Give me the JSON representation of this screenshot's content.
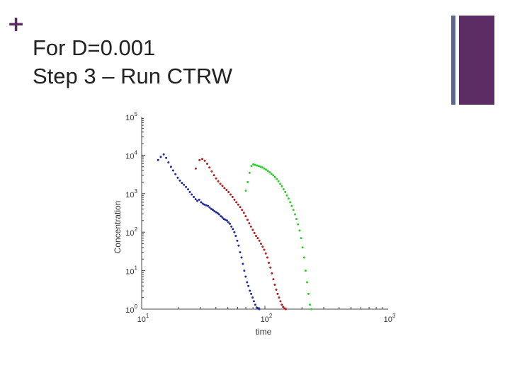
{
  "slide": {
    "plus_symbol": "+",
    "title_line1": "For D=0.001",
    "title_line2": "Step 3 – Run CTRW"
  },
  "colors": {
    "accent_thin": "#5b6591",
    "accent_thick": "#5c2d64"
  },
  "chart_data": {
    "type": "scatter",
    "xlabel": "time",
    "ylabel": "Concentration",
    "xscale": "log",
    "yscale": "log",
    "xlim": [
      10,
      1000
    ],
    "ylim": [
      1,
      100000
    ],
    "x_tick_labels": [
      {
        "value": 10,
        "base": "10",
        "exp": "1"
      },
      {
        "value": 100,
        "base": "10",
        "exp": "2"
      },
      {
        "value": 1000,
        "base": "10",
        "exp": "3"
      }
    ],
    "y_tick_labels": [
      {
        "value": 1,
        "base": "10",
        "exp": "0"
      },
      {
        "value": 10,
        "base": "10",
        "exp": "1"
      },
      {
        "value": 100,
        "base": "10",
        "exp": "2"
      },
      {
        "value": 1000,
        "base": "10",
        "exp": "3"
      },
      {
        "value": 10000,
        "base": "10",
        "exp": "4"
      },
      {
        "value": 100000,
        "base": "10",
        "exp": "5"
      }
    ],
    "series": [
      {
        "color": "#1f2a9c",
        "x": [
          13.6,
          14.3,
          15.1,
          15.8,
          16.5,
          17.3,
          18.0,
          18.8,
          19.6,
          20.4,
          21.2,
          22.0,
          22.9,
          23.8,
          24.6,
          25.5,
          26.5,
          27.4,
          28.3,
          29.3,
          30.3,
          31.3,
          32.3,
          33.4,
          34.5,
          35.6,
          36.7,
          37.8,
          39.0,
          40.2,
          41.4,
          42.6,
          43.9,
          45.2,
          46.5,
          47.8,
          49.2,
          50.6,
          52.0,
          53.5,
          55.0,
          56.5,
          58.0,
          59.6,
          61.2,
          62.9,
          64.6,
          66.3,
          68.0,
          69.8,
          71.6,
          73.5,
          75.4,
          77.4,
          79.4,
          81.4,
          83.5,
          85.6,
          87.8,
          90.0
        ],
        "y": [
          7500,
          9000,
          10500,
          8500,
          6500,
          5000,
          4000,
          3200,
          2600,
          2200,
          1900,
          1700,
          1500,
          1300,
          1100,
          950,
          820,
          720,
          650,
          700,
          600,
          550,
          520,
          500,
          480,
          440,
          400,
          380,
          350,
          330,
          310,
          290,
          260,
          240,
          220,
          210,
          200,
          180,
          165,
          140,
          120,
          100,
          80,
          60,
          45,
          30,
          22,
          15,
          10,
          7,
          5,
          4,
          3,
          2.5,
          2,
          1.6,
          1.3,
          1.1,
          1.05,
          1
        ]
      },
      {
        "color": "#b02020",
        "x": [
          27.5,
          29.5,
          31.0,
          32.5,
          34.0,
          35.5,
          37.0,
          38.6,
          40.2,
          41.8,
          43.5,
          45.2,
          47.0,
          48.8,
          50.7,
          52.6,
          54.6,
          56.6,
          58.7,
          60.8,
          63.0,
          65.2,
          67.5,
          69.8,
          72.2,
          74.6,
          77.1,
          79.6,
          82.2,
          84.8,
          87.5,
          90.2,
          93.0,
          95.8,
          98.7,
          101.6,
          104.6,
          107.6,
          110.7,
          113.8,
          117.0,
          120.2,
          123.5,
          126.8,
          130.2,
          133.6,
          137.1,
          140.6,
          144.2,
          147.8
        ],
        "y": [
          4500,
          7500,
          8000,
          7200,
          6000,
          4800,
          3800,
          3000,
          2500,
          2100,
          1800,
          1600,
          1400,
          1250,
          1100,
          950,
          820,
          700,
          600,
          520,
          450,
          380,
          320,
          260,
          210,
          170,
          140,
          115,
          95,
          80,
          70,
          60,
          50,
          42,
          35,
          28,
          22,
          16,
          12,
          8.5,
          6,
          4.3,
          3.2,
          2.5,
          2,
          1.6,
          1.3,
          1.15,
          1.05,
          1
        ]
      },
      {
        "color": "#2ecc2e",
        "x": [
          70.0,
          72.5,
          75.0,
          77.8,
          80.5,
          83.3,
          86.2,
          89.2,
          92.3,
          95.5,
          98.8,
          102.2,
          105.7,
          109.3,
          113.0,
          116.8,
          120.7,
          124.7,
          128.8,
          133.0,
          137.3,
          141.7,
          146.2,
          150.8,
          155.5,
          160.3,
          165.2,
          170.2,
          175.3,
          180.5,
          185.8,
          191.2,
          196.7,
          202.3,
          208.0,
          213.8,
          219.7,
          225.7,
          231.8,
          238.0
        ],
        "y": [
          1200,
          2000,
          3500,
          5200,
          5800,
          5600,
          5400,
          5200,
          5000,
          4800,
          4500,
          4200,
          3900,
          3600,
          3300,
          3000,
          2700,
          2400,
          2100,
          1800,
          1550,
          1300,
          1100,
          900,
          750,
          600,
          480,
          380,
          290,
          220,
          160,
          110,
          70,
          40,
          22,
          10,
          5,
          2.5,
          1.3,
          1
        ]
      }
    ]
  }
}
